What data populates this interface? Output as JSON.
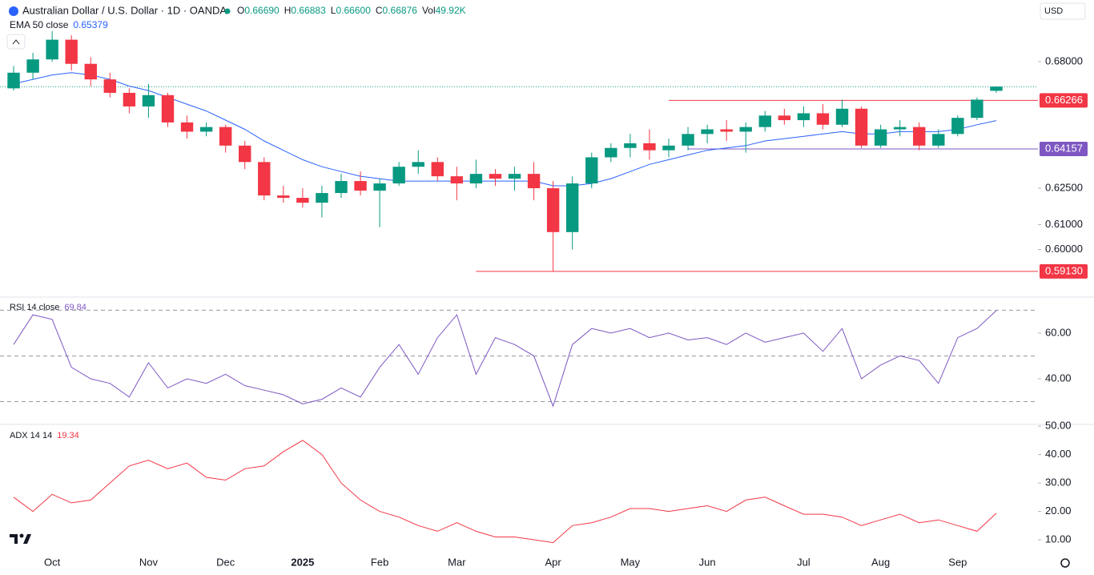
{
  "chart_data": [
    {
      "type": "candlestick",
      "title": "Australian Dollar / U.S. Dollar · 1D · OANDA",
      "ohlc_legend": [
        [
          "O",
          "0.66690"
        ],
        [
          "H",
          "0.66883"
        ],
        [
          "L",
          "0.66600"
        ],
        [
          "C",
          "0.66876"
        ],
        [
          "Vol",
          "49.92K"
        ]
      ],
      "currency": "USD",
      "log_scale": true,
      "categories": [
        null,
        null,
        "Oct",
        null,
        null,
        null,
        null,
        "Nov",
        null,
        null,
        null,
        "Dec",
        null,
        null,
        null,
        "2025",
        null,
        null,
        null,
        "Feb",
        null,
        null,
        null,
        "Mar",
        null,
        null,
        null,
        null,
        "Apr",
        null,
        null,
        null,
        "May",
        null,
        null,
        null,
        "Jun",
        null,
        null,
        null,
        null,
        "Jul",
        null,
        null,
        null,
        "Aug",
        null,
        null,
        null,
        "Sep",
        null,
        null
      ],
      "candles": {
        "open": [
          0.668,
          0.675,
          0.681,
          0.69,
          0.679,
          0.672,
          0.666,
          0.66,
          0.665,
          0.653,
          0.649,
          0.651,
          0.643,
          0.636,
          0.622,
          0.621,
          0.619,
          0.623,
          0.628,
          0.624,
          0.627,
          0.634,
          0.636,
          0.63,
          0.627,
          0.631,
          0.629,
          0.631,
          0.625,
          0.607,
          0.627,
          0.638,
          0.642,
          0.644,
          0.641,
          0.643,
          0.648,
          0.65,
          0.649,
          0.651,
          0.656,
          0.654,
          0.657,
          0.652,
          0.659,
          0.643,
          0.65,
          0.651,
          0.643,
          0.648,
          0.655,
          0.6669
        ],
        "high": [
          0.678,
          0.684,
          0.694,
          0.692,
          0.682,
          0.675,
          0.668,
          0.67,
          0.666,
          0.656,
          0.653,
          0.652,
          0.645,
          0.638,
          0.626,
          0.625,
          0.626,
          0.631,
          0.632,
          0.629,
          0.636,
          0.641,
          0.638,
          0.634,
          0.637,
          0.633,
          0.634,
          0.636,
          0.628,
          0.63,
          0.64,
          0.644,
          0.648,
          0.65,
          0.646,
          0.651,
          0.652,
          0.654,
          0.653,
          0.658,
          0.659,
          0.66,
          0.661,
          0.663,
          0.66,
          0.652,
          0.654,
          0.653,
          0.65,
          0.656,
          0.664,
          0.66883
        ],
        "low": [
          0.667,
          0.672,
          0.68,
          0.676,
          0.669,
          0.664,
          0.657,
          0.655,
          0.651,
          0.646,
          0.647,
          0.64,
          0.633,
          0.62,
          0.619,
          0.617,
          0.613,
          0.621,
          0.622,
          0.609,
          0.626,
          0.631,
          0.628,
          0.62,
          0.625,
          0.626,
          0.624,
          0.62,
          0.5913,
          0.6,
          0.625,
          0.636,
          0.638,
          0.637,
          0.638,
          0.641,
          0.644,
          0.645,
          0.64,
          0.649,
          0.652,
          0.651,
          0.65,
          0.651,
          0.642,
          0.642,
          0.647,
          0.641,
          0.642,
          0.647,
          0.654,
          0.666
        ],
        "close": [
          0.675,
          0.681,
          0.69,
          0.679,
          0.672,
          0.666,
          0.66,
          0.665,
          0.653,
          0.649,
          0.651,
          0.643,
          0.636,
          0.622,
          0.621,
          0.619,
          0.623,
          0.628,
          0.624,
          0.627,
          0.634,
          0.636,
          0.63,
          0.627,
          0.631,
          0.629,
          0.631,
          0.625,
          0.607,
          0.627,
          0.638,
          0.642,
          0.644,
          0.641,
          0.643,
          0.648,
          0.65,
          0.649,
          0.651,
          0.656,
          0.654,
          0.657,
          0.652,
          0.659,
          0.643,
          0.65,
          0.651,
          0.643,
          0.648,
          0.655,
          0.663,
          0.66876
        ]
      },
      "up_color": "#089981",
      "down_color": "#f23645",
      "overlay": {
        "name": "EMA 50 close",
        "color": "#2962ff",
        "values": [
          0.67,
          0.672,
          0.674,
          0.675,
          0.674,
          0.672,
          0.669,
          0.667,
          0.664,
          0.661,
          0.658,
          0.654,
          0.65,
          0.645,
          0.641,
          0.637,
          0.634,
          0.632,
          0.63,
          0.629,
          0.628,
          0.628,
          0.628,
          0.628,
          0.628,
          0.628,
          0.628,
          0.628,
          0.626,
          0.626,
          0.627,
          0.629,
          0.632,
          0.635,
          0.637,
          0.639,
          0.641,
          0.642,
          0.643,
          0.645,
          0.646,
          0.647,
          0.648,
          0.649,
          0.648,
          0.648,
          0.649,
          0.649,
          0.649,
          0.65,
          0.652,
          0.65379
        ]
      },
      "ylim": [
        0.5822,
        0.7085
      ],
      "yticks": [
        {
          "value": 0.68,
          "label": "0.68000"
        },
        {
          "value": 0.625,
          "label": "0.62500"
        },
        {
          "value": 0.61,
          "label": "0.61000"
        },
        {
          "value": 0.6,
          "label": "0.60000"
        }
      ],
      "levels": [
        {
          "value": 0.66266,
          "label": "0.66266",
          "color": "#f23645",
          "from": 34
        },
        {
          "value": 0.64157,
          "label": "0.64157",
          "color": "#7e57c2",
          "from": 35
        },
        {
          "value": 0.5913,
          "label": "0.59130",
          "color": "#f23645",
          "from": 24
        }
      ]
    },
    {
      "type": "line",
      "name": "RSI 14 close",
      "color": "#7e57c2",
      "values": [
        55,
        68,
        66,
        45,
        40,
        38,
        32,
        47,
        36,
        40,
        38,
        42,
        37,
        35,
        33,
        29,
        31,
        36,
        32,
        45,
        55,
        42,
        58,
        68,
        42,
        58,
        55,
        50,
        28,
        55,
        62,
        60,
        62,
        58,
        60,
        57,
        58,
        55,
        60,
        56,
        58,
        60,
        52,
        62,
        40,
        46,
        50,
        48,
        38,
        58,
        62,
        69.84
      ],
      "ylim": [
        20,
        75.4
      ],
      "yticks": [
        {
          "value": 40,
          "label": "40.00"
        },
        {
          "value": 60,
          "label": "60.00"
        }
      ],
      "bands": [
        30,
        50,
        70
      ]
    },
    {
      "type": "line",
      "name": "ADX 14 14",
      "color": "#f23645",
      "values": [
        25,
        20,
        26,
        23,
        24,
        30,
        36,
        38,
        35,
        37,
        32,
        31,
        35,
        36,
        41,
        45,
        40,
        30,
        24,
        20,
        18,
        15,
        13,
        16,
        13,
        11,
        11,
        10,
        9,
        15,
        16,
        18,
        21,
        21,
        20,
        21,
        22,
        20,
        24,
        25,
        22,
        19,
        19,
        18,
        15,
        17,
        19,
        16,
        17,
        15,
        13,
        19.34
      ],
      "ylim": [
        5.5,
        50.6
      ],
      "yticks": [
        {
          "value": 10,
          "label": "10.00"
        },
        {
          "value": 20,
          "label": "20.00"
        },
        {
          "value": 30,
          "label": "30.00"
        },
        {
          "value": 40,
          "label": "40.00"
        },
        {
          "value": 50,
          "label": "50.00"
        }
      ]
    }
  ]
}
